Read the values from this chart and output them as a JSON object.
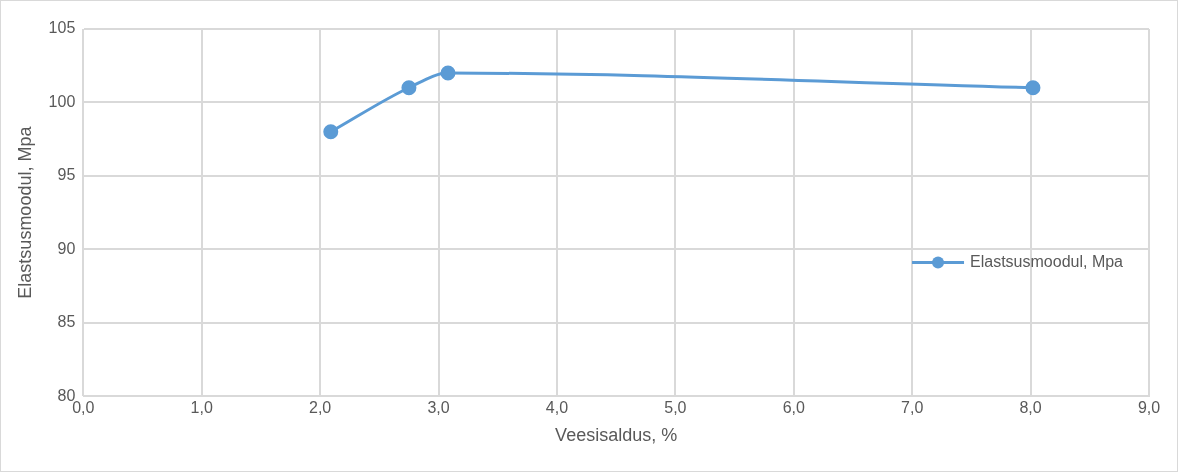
{
  "chart_data": {
    "type": "line",
    "xlabel": "Veesisaldus, %",
    "ylabel": "Elastsusmoodul, Mpa",
    "x": [
      2.09,
      2.75,
      3.08,
      8.02
    ],
    "series": [
      {
        "name": "Elastsusmoodul, Mpa",
        "color": "#5b9bd5",
        "values": [
          98,
          101,
          102,
          101
        ]
      }
    ],
    "xlim": [
      0,
      9
    ],
    "xticks": [
      {
        "value": 0,
        "label": "0,0"
      },
      {
        "value": 1,
        "label": "1,0"
      },
      {
        "value": 2,
        "label": "2,0"
      },
      {
        "value": 3,
        "label": "3,0"
      },
      {
        "value": 4,
        "label": "4,0"
      },
      {
        "value": 5,
        "label": "5,0"
      },
      {
        "value": 6,
        "label": "6,0"
      },
      {
        "value": 7,
        "label": "7,0"
      },
      {
        "value": 8,
        "label": "8,0"
      },
      {
        "value": 9,
        "label": "9,0"
      }
    ],
    "ylim": [
      80,
      105
    ],
    "yticks": [
      80,
      85,
      90,
      95,
      100,
      105
    ],
    "grid": true,
    "legend": "right",
    "marker": "circle",
    "line_style": "solid"
  }
}
